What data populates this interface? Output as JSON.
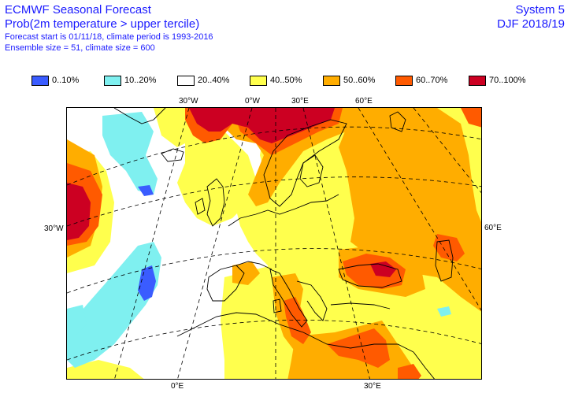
{
  "header": {
    "title": "ECMWF Seasonal Forecast",
    "subtitle": "Prob(2m temperature > upper tercile)",
    "info_line1": "Forecast start is 01/11/18, climate period is 1993-2016",
    "info_line2": "Ensemble size = 51, climate size = 600",
    "system": "System 5",
    "season": "DJF 2018/19"
  },
  "legend": {
    "items": [
      {
        "label": "0..10%",
        "color": "#3a5cff"
      },
      {
        "label": "10..20%",
        "color": "#7ff0f0"
      },
      {
        "label": "20..40%",
        "color": "#ffffff"
      },
      {
        "label": "40..50%",
        "color": "#ffff4d"
      },
      {
        "label": "50..60%",
        "color": "#ffad00"
      },
      {
        "label": "60..70%",
        "color": "#ff5a00"
      },
      {
        "label": "70..100%",
        "color": "#cc0022"
      }
    ]
  },
  "axes": {
    "top_labels": [
      "30°W",
      "0°W",
      "30°E",
      "60°E"
    ],
    "left_label": "30°W",
    "right_label": "60°E",
    "bottom_labels": [
      "0°E",
      "30°E"
    ]
  }
}
